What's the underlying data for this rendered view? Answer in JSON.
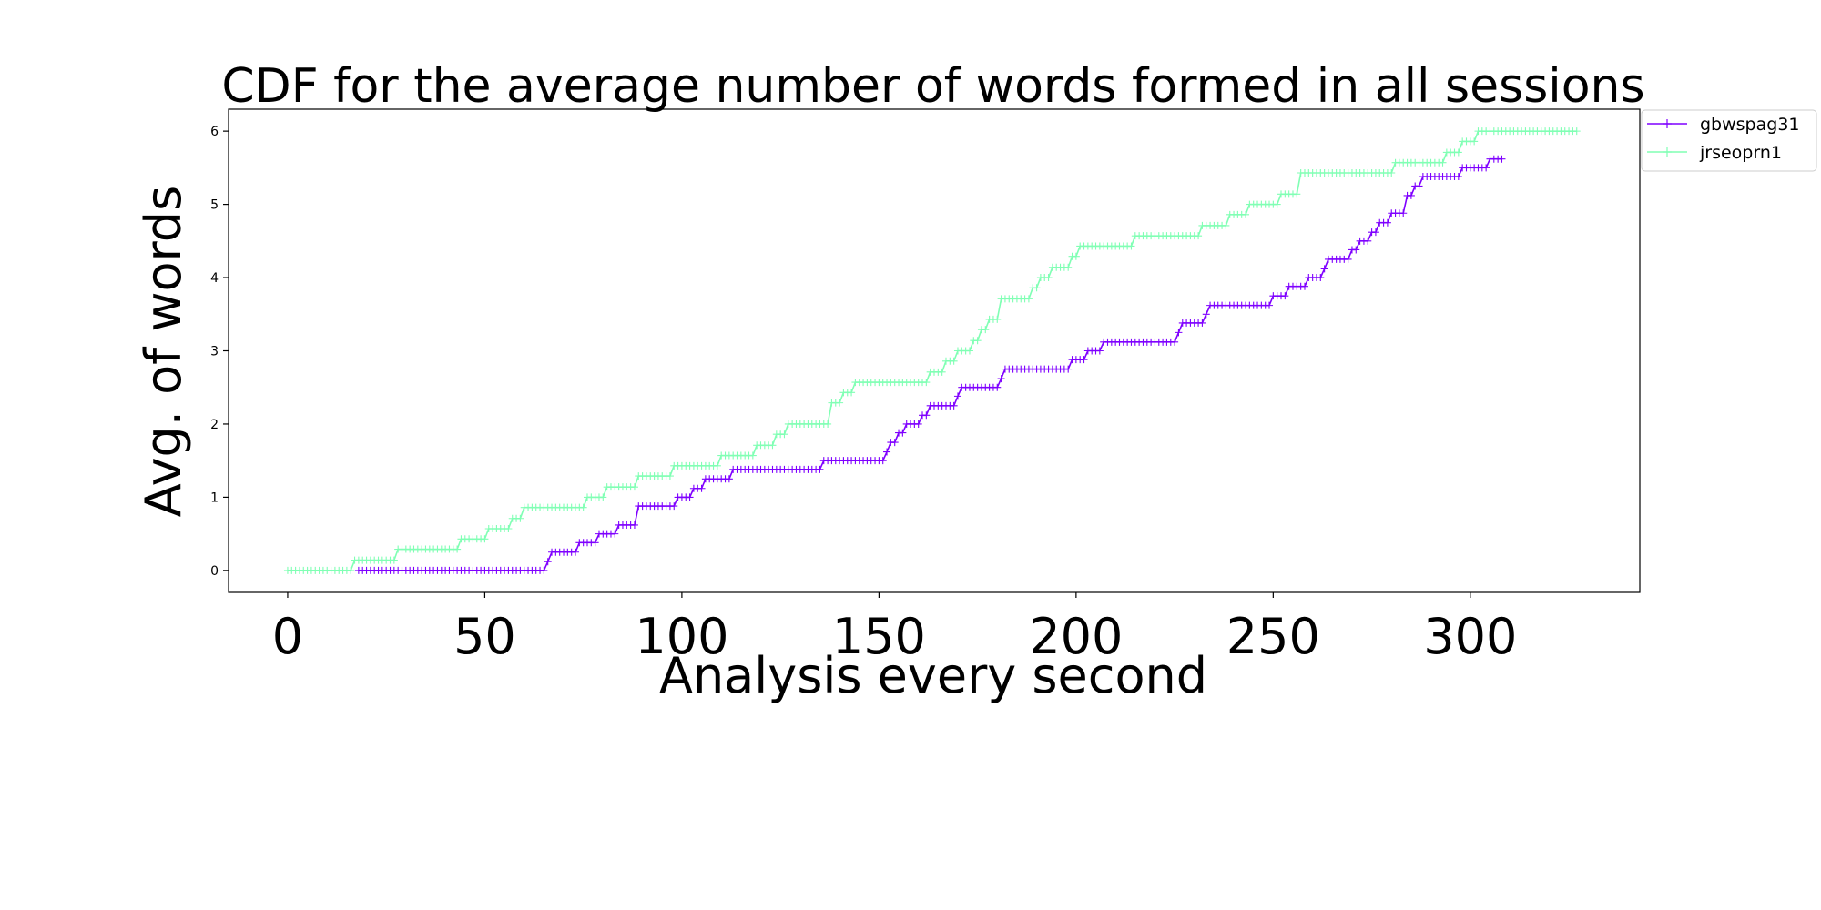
{
  "chart_data": {
    "type": "line",
    "title": "CDF for the average number of words formed in all sessions",
    "xlabel": "Analysis every second",
    "ylabel": "Avg. of words",
    "xlim": [
      -15,
      343
    ],
    "ylim": [
      -0.3,
      6.3
    ],
    "xticks": [
      0,
      50,
      100,
      150,
      200,
      250,
      300
    ],
    "yticks": [
      0,
      1,
      2,
      3,
      4,
      5,
      6
    ],
    "grid": false,
    "legend": "upper-right-outside",
    "marker": "+",
    "series": [
      {
        "name": "gbwspag31",
        "color": "#7f00ff",
        "x_range": [
          18,
          308
        ],
        "steps": [
          [
            18,
            0.0
          ],
          [
            66,
            0.12
          ],
          [
            67,
            0.25
          ],
          [
            74,
            0.38
          ],
          [
            79,
            0.5
          ],
          [
            84,
            0.62
          ],
          [
            89,
            0.88
          ],
          [
            99,
            1.0
          ],
          [
            103,
            1.12
          ],
          [
            106,
            1.25
          ],
          [
            113,
            1.38
          ],
          [
            136,
            1.5
          ],
          [
            152,
            1.62
          ],
          [
            153,
            1.75
          ],
          [
            155,
            1.88
          ],
          [
            157,
            2.0
          ],
          [
            161,
            2.12
          ],
          [
            163,
            2.25
          ],
          [
            170,
            2.38
          ],
          [
            171,
            2.5
          ],
          [
            181,
            2.62
          ],
          [
            182,
            2.75
          ],
          [
            199,
            2.88
          ],
          [
            203,
            3.0
          ],
          [
            207,
            3.12
          ],
          [
            226,
            3.25
          ],
          [
            227,
            3.38
          ],
          [
            233,
            3.5
          ],
          [
            234,
            3.62
          ],
          [
            250,
            3.75
          ],
          [
            254,
            3.88
          ],
          [
            259,
            4.0
          ],
          [
            263,
            4.12
          ],
          [
            264,
            4.25
          ],
          [
            270,
            4.38
          ],
          [
            272,
            4.5
          ],
          [
            275,
            4.62
          ],
          [
            277,
            4.75
          ],
          [
            280,
            4.88
          ],
          [
            284,
            5.12
          ],
          [
            286,
            5.25
          ],
          [
            288,
            5.38
          ],
          [
            298,
            5.5
          ],
          [
            305,
            5.62
          ]
        ]
      },
      {
        "name": "jrseoprn1",
        "color": "#80ffb4",
        "x_range": [
          0,
          327
        ],
        "steps": [
          [
            0,
            0.0
          ],
          [
            17,
            0.14
          ],
          [
            28,
            0.29
          ],
          [
            44,
            0.43
          ],
          [
            51,
            0.57
          ],
          [
            57,
            0.71
          ],
          [
            60,
            0.86
          ],
          [
            76,
            1.0
          ],
          [
            81,
            1.14
          ],
          [
            89,
            1.29
          ],
          [
            98,
            1.43
          ],
          [
            110,
            1.57
          ],
          [
            119,
            1.71
          ],
          [
            124,
            1.86
          ],
          [
            127,
            2.0
          ],
          [
            138,
            2.29
          ],
          [
            141,
            2.43
          ],
          [
            144,
            2.57
          ],
          [
            163,
            2.71
          ],
          [
            167,
            2.86
          ],
          [
            170,
            3.0
          ],
          [
            174,
            3.14
          ],
          [
            176,
            3.29
          ],
          [
            178,
            3.43
          ],
          [
            181,
            3.71
          ],
          [
            189,
            3.86
          ],
          [
            191,
            4.0
          ],
          [
            194,
            4.14
          ],
          [
            199,
            4.29
          ],
          [
            201,
            4.43
          ],
          [
            215,
            4.57
          ],
          [
            232,
            4.71
          ],
          [
            239,
            4.86
          ],
          [
            244,
            5.0
          ],
          [
            252,
            5.14
          ],
          [
            257,
            5.43
          ],
          [
            281,
            5.57
          ],
          [
            294,
            5.71
          ],
          [
            298,
            5.86
          ],
          [
            302,
            6.0
          ]
        ]
      }
    ]
  }
}
